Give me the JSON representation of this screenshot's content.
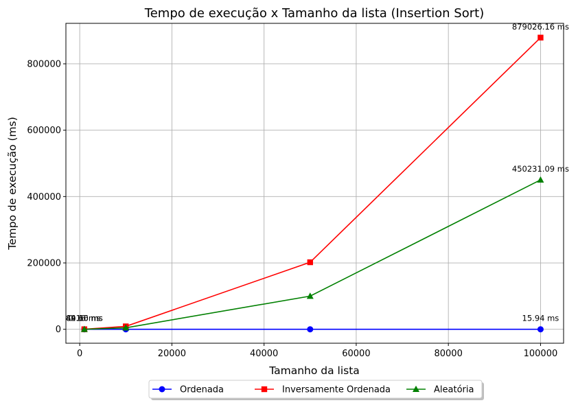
{
  "chart_data": {
    "type": "line",
    "title": "Tempo de execução x Tamanho da lista (Insertion Sort)",
    "xlabel": "Tamanho da lista",
    "ylabel": "Tempo de execução (ms)",
    "xlim": [
      -3000,
      105000
    ],
    "ylim": [
      -42000,
      922000
    ],
    "x_ticks": [
      0,
      20000,
      40000,
      60000,
      80000,
      100000
    ],
    "y_ticks": [
      0,
      200000,
      400000,
      600000,
      800000
    ],
    "grid": true,
    "legend_position": "bottom-center",
    "x": [
      1000,
      10000,
      50000,
      100000
    ],
    "series": [
      {
        "name": "Ordenada",
        "color": "#0000ff",
        "marker": "circle",
        "values": [
          0.16,
          1.6,
          8.0,
          15.94
        ]
      },
      {
        "name": "Inversamente Ordenada",
        "color": "#ff0000",
        "marker": "square",
        "values": [
          89.16,
          8800,
          202000,
          879026.16
        ]
      },
      {
        "name": "Aleatória",
        "color": "#008000",
        "marker": "triangle",
        "values": [
          44.6,
          4500,
          100000,
          450231.09
        ]
      }
    ],
    "annotations": [
      {
        "series": 0,
        "index": 0,
        "text": "0.16 ms"
      },
      {
        "series": 0,
        "index": 3,
        "text": "15.94 ms"
      },
      {
        "series": 1,
        "index": 0,
        "text": "89.16 ms"
      },
      {
        "series": 1,
        "index": 3,
        "text": "879026.16 ms"
      },
      {
        "series": 2,
        "index": 0,
        "text": "44.60 ms"
      },
      {
        "series": 2,
        "index": 3,
        "text": "450231.09 ms"
      }
    ]
  }
}
